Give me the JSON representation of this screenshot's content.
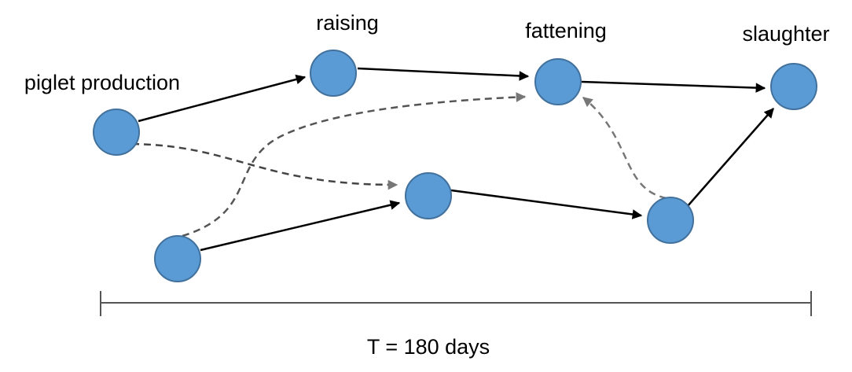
{
  "stages": [
    "piglet production",
    "raising",
    "fattening",
    "slaughter"
  ],
  "timeline_label": "T = 180 days"
}
